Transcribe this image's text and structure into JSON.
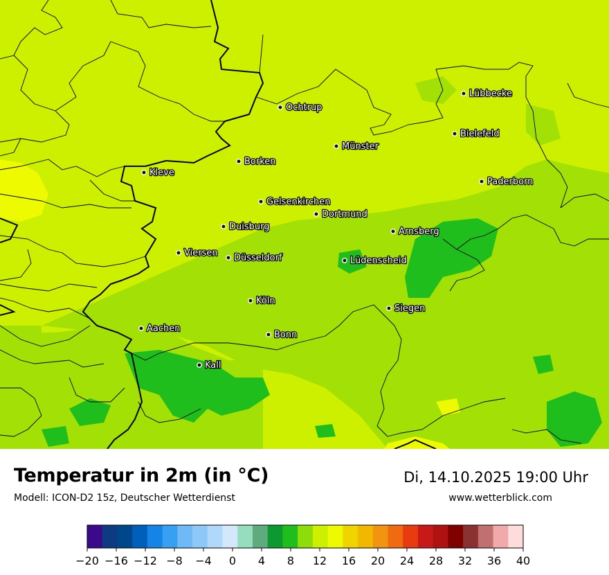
{
  "map": {
    "cities": [
      {
        "name": "Lübbecke"
      },
      {
        "name": "Ochtrup"
      },
      {
        "name": "Bielefeld"
      },
      {
        "name": "Münster"
      },
      {
        "name": "Borken"
      },
      {
        "name": "Kleve"
      },
      {
        "name": "Paderborn"
      },
      {
        "name": "Gelsenkirchen"
      },
      {
        "name": "Dortmund"
      },
      {
        "name": "Duisburg"
      },
      {
        "name": "Arnsberg"
      },
      {
        "name": "Viersen"
      },
      {
        "name": "Düsseldorf"
      },
      {
        "name": "Lüdenscheid"
      },
      {
        "name": "Köln"
      },
      {
        "name": "Siegen"
      },
      {
        "name": "Aachen"
      },
      {
        "name": "Bonn"
      },
      {
        "name": "Kall"
      }
    ]
  },
  "header": {
    "title": "Temperatur in 2m (in °C)",
    "subtitle": "Modell: ICON-D2 15z, Deutscher Wetterdienst",
    "datetime": "Di, 14.10.2025 19:00 Uhr",
    "website": "www.wetterblick.com"
  },
  "legend": {
    "colors": [
      "#3a0a8a",
      "#0d3a80",
      "#00468a",
      "#005fba",
      "#1584e8",
      "#38a0f0",
      "#6eb9f6",
      "#8ec8f8",
      "#b0d8fa",
      "#d4e8fc",
      "#96dcbe",
      "#60ab7e",
      "#0c9a30",
      "#1fbe1c",
      "#8edc0a",
      "#ccf000",
      "#eefa00",
      "#f0d400",
      "#f2b800",
      "#f29410",
      "#f06a10",
      "#e83c10",
      "#c81818",
      "#b01212",
      "#800000",
      "#8a3232",
      "#c07070",
      "#f0aaaa",
      "#ffdcdc"
    ],
    "ticks": [
      "−20",
      "−16",
      "−12",
      "−8",
      "−4",
      "0",
      "4",
      "8",
      "12",
      "16",
      "20",
      "24",
      "28",
      "32",
      "36",
      "40"
    ]
  }
}
